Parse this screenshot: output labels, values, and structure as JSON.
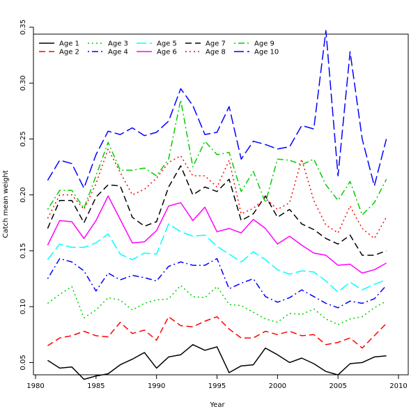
{
  "chart_data": {
    "type": "line",
    "xlabel": "Year",
    "ylabel": "Catch mean weight",
    "xlim": [
      1980,
      2010
    ],
    "ylim": [
      0.03,
      0.36
    ],
    "x_ticks": [
      1980,
      1985,
      1990,
      1995,
      2000,
      2005,
      2010
    ],
    "y_ticks": [
      0.05,
      0.1,
      0.15,
      0.2,
      0.25,
      0.3,
      0.35
    ],
    "legend_placement": "top-left",
    "grid": false,
    "x": [
      1981,
      1982,
      1983,
      1984,
      1985,
      1986,
      1987,
      1988,
      1989,
      1990,
      1991,
      1992,
      1993,
      1994,
      1995,
      1996,
      1997,
      1998,
      1999,
      2000,
      2001,
      2002,
      2003,
      2004,
      2005,
      2006,
      2007,
      2008,
      2009
    ],
    "series": [
      {
        "name": "Age 1",
        "color": "#000000",
        "dash": "solid",
        "values": [
          0.052,
          0.045,
          0.046,
          0.035,
          0.038,
          0.04,
          0.048,
          0.053,
          0.059,
          0.045,
          0.055,
          0.057,
          0.066,
          0.061,
          0.064,
          0.041,
          0.047,
          0.048,
          0.063,
          0.057,
          0.05,
          0.054,
          0.049,
          0.042,
          0.039,
          0.049,
          0.05,
          0.055,
          0.056
        ]
      },
      {
        "name": "Age 2",
        "color": "#ff0000",
        "dash": "dashed",
        "values": [
          0.065,
          0.072,
          0.074,
          0.078,
          0.074,
          0.073,
          0.086,
          0.076,
          0.079,
          0.07,
          0.091,
          0.083,
          0.082,
          0.087,
          0.091,
          0.08,
          0.072,
          0.072,
          0.078,
          0.075,
          0.078,
          0.074,
          0.075,
          0.066,
          0.068,
          0.072,
          0.063,
          0.074,
          0.085
        ]
      },
      {
        "name": "Age 3",
        "color": "#00cd00",
        "dash": "dotted",
        "values": [
          0.103,
          0.111,
          0.118,
          0.09,
          0.097,
          0.108,
          0.106,
          0.097,
          0.103,
          0.106,
          0.107,
          0.119,
          0.109,
          0.108,
          0.118,
          0.102,
          0.101,
          0.095,
          0.089,
          0.086,
          0.094,
          0.093,
          0.098,
          0.089,
          0.084,
          0.089,
          0.091,
          0.099,
          0.105
        ]
      },
      {
        "name": "Age 4",
        "color": "#0000ff",
        "dash": "dotdash",
        "values": [
          0.125,
          0.143,
          0.14,
          0.132,
          0.114,
          0.13,
          0.124,
          0.128,
          0.126,
          0.123,
          0.136,
          0.14,
          0.137,
          0.137,
          0.143,
          0.116,
          0.121,
          0.125,
          0.109,
          0.104,
          0.108,
          0.115,
          0.109,
          0.103,
          0.099,
          0.105,
          0.103,
          0.107,
          0.119
        ]
      },
      {
        "name": "Age 5",
        "color": "#00ffff",
        "dash": "longdash",
        "values": [
          0.142,
          0.156,
          0.153,
          0.153,
          0.157,
          0.165,
          0.147,
          0.142,
          0.148,
          0.147,
          0.174,
          0.167,
          0.163,
          0.164,
          0.154,
          0.147,
          0.14,
          0.149,
          0.142,
          0.133,
          0.129,
          0.132,
          0.131,
          0.123,
          0.113,
          0.122,
          0.115,
          0.12,
          0.124
        ]
      },
      {
        "name": "Age 6",
        "color": "#ff00ff",
        "dash": "solid",
        "values": [
          0.155,
          0.177,
          0.176,
          0.161,
          0.177,
          0.199,
          0.178,
          0.157,
          0.158,
          0.168,
          0.19,
          0.193,
          0.177,
          0.189,
          0.167,
          0.17,
          0.166,
          0.178,
          0.17,
          0.156,
          0.163,
          0.155,
          0.148,
          0.146,
          0.137,
          0.138,
          0.13,
          0.133,
          0.139
        ]
      },
      {
        "name": "Age 7",
        "color": "#000000",
        "dash": "dashed",
        "values": [
          0.17,
          0.195,
          0.195,
          0.175,
          0.198,
          0.209,
          0.208,
          0.18,
          0.172,
          0.176,
          0.207,
          0.226,
          0.2,
          0.207,
          0.203,
          0.214,
          0.177,
          0.183,
          0.199,
          0.18,
          0.187,
          0.174,
          0.169,
          0.161,
          0.156,
          0.164,
          0.146,
          0.146,
          0.15
        ]
      },
      {
        "name": "Age 8",
        "color": "#ff0000",
        "dash": "dotted",
        "values": [
          0.179,
          0.2,
          0.2,
          0.187,
          0.21,
          0.241,
          0.22,
          0.2,
          0.205,
          0.215,
          0.229,
          0.235,
          0.217,
          0.217,
          0.207,
          0.231,
          0.183,
          0.188,
          0.197,
          0.187,
          0.193,
          0.232,
          0.195,
          0.173,
          0.166,
          0.19,
          0.17,
          0.161,
          0.18
        ]
      },
      {
        "name": "Age 9",
        "color": "#00cd00",
        "dash": "dotdash",
        "values": [
          0.187,
          0.204,
          0.204,
          0.188,
          0.217,
          0.247,
          0.222,
          0.222,
          0.224,
          0.217,
          0.232,
          0.285,
          0.225,
          0.248,
          0.236,
          0.238,
          0.203,
          0.221,
          0.193,
          0.232,
          0.231,
          0.227,
          0.232,
          0.209,
          0.195,
          0.212,
          0.182,
          0.193,
          0.214
        ]
      },
      {
        "name": "Age 10",
        "color": "#0000ff",
        "dash": "longdash",
        "values": [
          0.213,
          0.231,
          0.228,
          0.206,
          0.236,
          0.257,
          0.254,
          0.26,
          0.253,
          0.256,
          0.266,
          0.295,
          0.28,
          0.254,
          0.256,
          0.279,
          0.232,
          0.248,
          0.245,
          0.241,
          0.243,
          0.262,
          0.259,
          0.347,
          0.217,
          0.328,
          0.25,
          0.208,
          0.25
        ]
      }
    ]
  }
}
